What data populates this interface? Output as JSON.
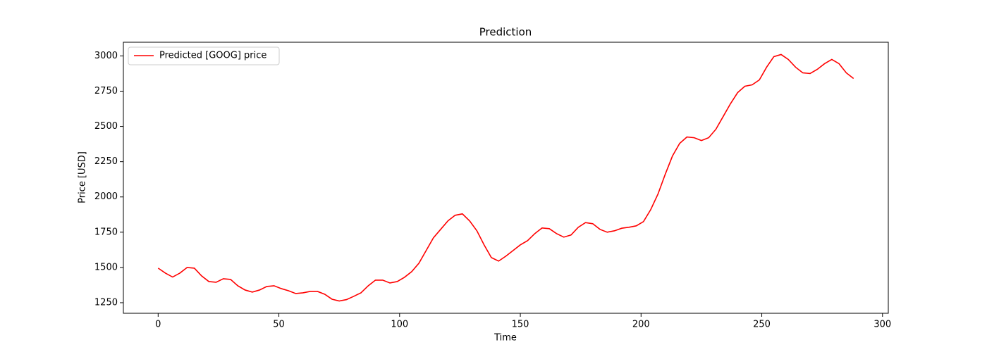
{
  "chart_data": {
    "type": "line",
    "title": "Prediction",
    "xlabel": "Time",
    "ylabel": "Price [USD]",
    "x": [
      0,
      3,
      6,
      9,
      12,
      15,
      18,
      21,
      24,
      27,
      30,
      33,
      36,
      39,
      42,
      45,
      48,
      51,
      54,
      57,
      60,
      63,
      66,
      69,
      72,
      75,
      78,
      81,
      84,
      87,
      90,
      93,
      96,
      99,
      102,
      105,
      108,
      111,
      114,
      117,
      120,
      123,
      126,
      129,
      132,
      135,
      138,
      141,
      144,
      147,
      150,
      153,
      156,
      159,
      162,
      165,
      168,
      171,
      174,
      177,
      180,
      183,
      186,
      189,
      192,
      195,
      198,
      201,
      204,
      207,
      210,
      213,
      216,
      219,
      222,
      225,
      228,
      231,
      234,
      237,
      240,
      243,
      246,
      249,
      252,
      255,
      258,
      261,
      264,
      267,
      270,
      273,
      276,
      279,
      282,
      285,
      288
    ],
    "series": [
      {
        "name": "Predicted [GOOG] price",
        "color": "#ff0000",
        "values": [
          1495,
          1460,
          1432,
          1460,
          1500,
          1495,
          1440,
          1400,
          1395,
          1420,
          1415,
          1370,
          1340,
          1325,
          1340,
          1365,
          1370,
          1350,
          1335,
          1315,
          1320,
          1330,
          1330,
          1310,
          1275,
          1262,
          1272,
          1295,
          1320,
          1370,
          1410,
          1410,
          1390,
          1400,
          1430,
          1470,
          1530,
          1620,
          1710,
          1770,
          1830,
          1870,
          1880,
          1830,
          1760,
          1660,
          1570,
          1545,
          1580,
          1620,
          1660,
          1690,
          1740,
          1780,
          1775,
          1740,
          1715,
          1730,
          1785,
          1818,
          1810,
          1770,
          1750,
          1760,
          1778,
          1785,
          1795,
          1825,
          1910,
          2020,
          2160,
          2290,
          2380,
          2425,
          2420,
          2400,
          2420,
          2480,
          2570,
          2660,
          2740,
          2785,
          2795,
          2830,
          2920,
          2995,
          3010,
          2975,
          2920,
          2880,
          2875,
          2905,
          2945,
          2975,
          2945,
          2880,
          2840
        ]
      }
    ],
    "xlim": [
      -14.4,
      302.4
    ],
    "xticks": [
      0,
      50,
      100,
      150,
      200,
      250,
      300
    ],
    "ylim": [
      1175,
      3097
    ],
    "yticks": [
      1250,
      1500,
      1750,
      2000,
      2250,
      2500,
      2750,
      3000
    ],
    "legend": "upper left"
  }
}
